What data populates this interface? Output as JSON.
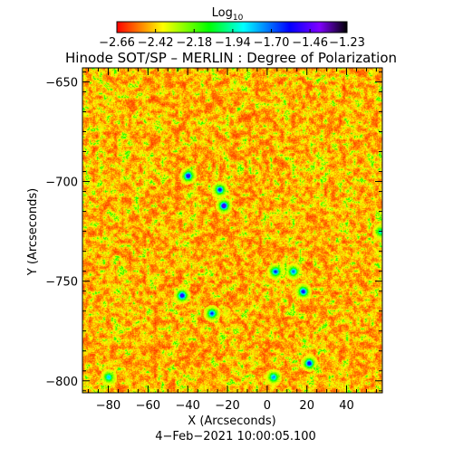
{
  "chart_data": {
    "type": "heatmap",
    "title": "Hinode SOT/SP – MERLIN : Degree of Polarization",
    "xlabel": "X (Arcseconds)",
    "ylabel": "Y (Arcseconds)",
    "xlim": [
      -93,
      58
    ],
    "ylim": [
      -806,
      -643
    ],
    "xticks": [
      -80,
      -60,
      -40,
      -20,
      0,
      20,
      40
    ],
    "yticks": [
      -650,
      -700,
      -750,
      -800
    ],
    "xtick_labels": [
      "−80",
      "−60",
      "−40",
      "−20",
      "0",
      "20",
      "40"
    ],
    "ytick_labels": [
      "−650",
      "−700",
      "−750",
      "−800"
    ],
    "date_label": "4−Feb−2021 10:00:05.100",
    "colorbar": {
      "title": "Log",
      "title_subscript": "10",
      "range": [
        -2.66,
        -1.23
      ],
      "tick_values": [
        -2.66,
        -2.42,
        -2.18,
        -1.94,
        -1.7,
        -1.46,
        -1.23
      ],
      "tick_labels": [
        "−2.66",
        "−2.42",
        "−2.18",
        "−1.94",
        "−1.70",
        "−1.46",
        "−1.23"
      ],
      "colors": [
        "#ff0000",
        "#ffff00",
        "#00ff00",
        "#00ffff",
        "#0000ff",
        "#8000ff",
        "#000000"
      ]
    },
    "features": [
      {
        "x": -40,
        "y": -697,
        "value": -1.46
      },
      {
        "x": -22,
        "y": -712,
        "value": -1.4
      },
      {
        "x": -24,
        "y": -704,
        "value": -1.55
      },
      {
        "x": -43,
        "y": -757,
        "value": -1.46
      },
      {
        "x": -28,
        "y": -766,
        "value": -1.6
      },
      {
        "x": 4,
        "y": -745,
        "value": -1.58
      },
      {
        "x": 13,
        "y": -745,
        "value": -1.7
      },
      {
        "x": 18,
        "y": -755,
        "value": -1.52
      },
      {
        "x": 21,
        "y": -791,
        "value": -1.5
      },
      {
        "x": -80,
        "y": -798,
        "value": -1.8
      },
      {
        "x": 3,
        "y": -798,
        "value": -1.72
      },
      {
        "x": 57,
        "y": -725,
        "value": -1.9
      }
    ]
  }
}
